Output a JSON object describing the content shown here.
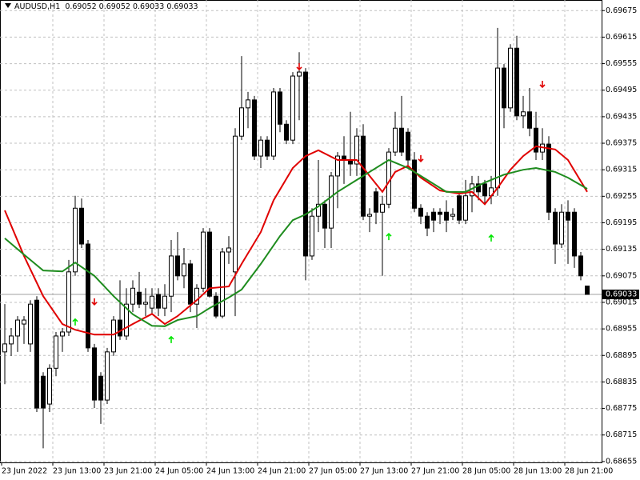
{
  "chart_data": {
    "type": "candlestick",
    "title": "AUDUSD,H1",
    "title_values": [
      0.69052,
      0.69052,
      0.69033,
      0.69033
    ],
    "categories": [
      "23 Jun 2022",
      null,
      null,
      null,
      null,
      null,
      null,
      null,
      "23 Jun 13:00",
      null,
      null,
      null,
      null,
      null,
      null,
      null,
      "23 Jun 21:00",
      null,
      null,
      null,
      null,
      null,
      null,
      null,
      "24 Jun 05:00",
      null,
      null,
      null,
      null,
      null,
      null,
      null,
      "24 Jun 13:00",
      null,
      null,
      null,
      null,
      null,
      null,
      null,
      "24 Jun 21:00",
      null,
      null,
      null,
      null,
      null,
      null,
      null,
      "27 Jun 05:00",
      null,
      null,
      null,
      null,
      null,
      null,
      null,
      "27 Jun 13:00",
      null,
      null,
      null,
      null,
      null,
      null,
      null,
      "27 Jun 21:00",
      null,
      null,
      null,
      null,
      null,
      null,
      null,
      "28 Jun 05:00",
      null,
      null,
      null,
      null,
      null,
      null,
      null,
      "28 Jun 13:00",
      null,
      null,
      null,
      null,
      null,
      null,
      null,
      "28 Jun 21:00",
      null,
      null,
      null
    ],
    "open": [
      0.68903,
      0.68921,
      0.68939,
      0.68966,
      0.68921,
      0.6902,
      0.68848,
      0.68785,
      0.68866,
      0.68939,
      0.68948,
      0.69084,
      0.69228,
      0.69147,
      0.68912,
      0.68848,
      0.68794,
      0.68903,
      0.68975,
      0.68939,
      0.69011,
      0.69038,
      0.69011,
      0.69002,
      0.69033,
      0.69002,
      0.69029,
      0.6912,
      0.69075,
      0.69102,
      0.69011,
      0.69047,
      0.69174,
      0.69029,
      0.68984,
      0.69129,
      0.69084,
      0.69391,
      0.69455,
      0.69473,
      0.69346,
      0.69382,
      0.69346,
      0.69491,
      0.69418,
      0.69382,
      0.69527,
      0.69536,
      0.6912,
      0.6921,
      0.69237,
      0.69183,
      0.69301,
      0.69346,
      0.69337,
      0.69328,
      0.69391,
      0.6921,
      0.69265,
      0.69219,
      0.69237,
      0.69355,
      0.69409,
      0.694,
      0.69337,
      0.69228,
      0.6921,
      0.69219,
      0.69219,
      0.69219,
      0.6921,
      0.69256,
      0.69201,
      0.69256,
      0.69283,
      0.69283,
      0.69256,
      0.69274,
      0.69545,
      0.69455,
      0.6959,
      0.69437,
      0.69446,
      0.69409,
      0.69355,
      0.69373,
      0.69219,
      0.69147,
      0.69219,
      0.69219,
      0.6912,
      0.69052
    ],
    "high": [
      0.69011,
      0.68957,
      0.68984,
      0.68984,
      0.6902,
      0.69029,
      0.68857,
      0.68875,
      0.68948,
      0.68957,
      0.69111,
      0.69256,
      0.6925,
      0.69156,
      0.68921,
      0.68857,
      0.68912,
      0.68984,
      0.69065,
      0.69047,
      0.69065,
      0.69084,
      0.69047,
      0.69047,
      0.69047,
      0.69056,
      0.69156,
      0.69174,
      0.69138,
      0.69111,
      0.69056,
      0.69183,
      0.69183,
      0.69038,
      0.69138,
      0.69165,
      0.69409,
      0.69572,
      0.69491,
      0.69482,
      0.69391,
      0.69391,
      0.695,
      0.695,
      0.69427,
      0.69536,
      0.69581,
      0.69545,
      0.69228,
      0.69337,
      0.69246,
      0.6931,
      0.69355,
      0.69391,
      0.69446,
      0.69409,
      0.69418,
      0.69228,
      0.69274,
      0.69256,
      0.69364,
      0.69446,
      0.69482,
      0.69409,
      0.69355,
      0.69237,
      0.69219,
      0.69228,
      0.69228,
      0.69246,
      0.69228,
      0.69265,
      0.69292,
      0.69301,
      0.69301,
      0.69292,
      0.69301,
      0.69636,
      0.69554,
      0.69599,
      0.69618,
      0.69482,
      0.695,
      0.69446,
      0.69409,
      0.69391,
      0.69228,
      0.69237,
      0.69246,
      0.69228,
      0.69129,
      0.69052
    ],
    "low": [
      0.6883,
      0.68894,
      0.68903,
      0.68921,
      0.68903,
      0.68767,
      0.68685,
      0.68767,
      0.68848,
      0.68903,
      0.68939,
      0.69075,
      0.69138,
      0.68903,
      0.68776,
      0.6874,
      0.68785,
      0.68894,
      0.6893,
      0.6893,
      0.68993,
      0.69002,
      0.68984,
      0.68989,
      0.68984,
      0.68984,
      0.68993,
      0.69065,
      0.69047,
      0.68993,
      0.68957,
      0.69038,
      0.69026,
      0.68979,
      0.68979,
      0.69102,
      0.68984,
      0.69382,
      0.69409,
      0.69337,
      0.69319,
      0.69337,
      0.69337,
      0.694,
      0.69373,
      0.69373,
      0.69427,
      0.69065,
      0.69111,
      0.69174,
      0.69138,
      0.69138,
      0.69228,
      0.69283,
      0.69301,
      0.69301,
      0.69201,
      0.69174,
      0.69192,
      0.69075,
      0.69228,
      0.69346,
      0.69346,
      0.69319,
      0.69219,
      0.69192,
      0.69165,
      0.69174,
      0.69192,
      0.69174,
      0.69201,
      0.69192,
      0.69192,
      0.69219,
      0.69246,
      0.69237,
      0.69237,
      0.69256,
      0.69409,
      0.69446,
      0.69427,
      0.69409,
      0.69391,
      0.69337,
      0.69337,
      0.69201,
      0.69102,
      0.69138,
      0.69102,
      0.69093,
      0.69065,
      0.69033
    ],
    "close": [
      0.68921,
      0.68939,
      0.68975,
      0.68975,
      0.69011,
      0.68776,
      0.68776,
      0.68866,
      0.68939,
      0.68948,
      0.69084,
      0.69228,
      0.69147,
      0.68912,
      0.68794,
      0.68794,
      0.68903,
      0.68975,
      0.68939,
      0.69011,
      0.69047,
      0.69011,
      0.69015,
      0.69029,
      0.69002,
      0.69029,
      0.6912,
      0.69075,
      0.69102,
      0.69011,
      0.69047,
      0.69174,
      0.69029,
      0.68984,
      0.69129,
      0.69138,
      0.69391,
      0.69455,
      0.69473,
      0.69346,
      0.69382,
      0.69346,
      0.69491,
      0.69418,
      0.69382,
      0.69527,
      0.69536,
      0.6912,
      0.6921,
      0.69237,
      0.69183,
      0.69301,
      0.69346,
      0.69337,
      0.69328,
      0.69391,
      0.6921,
      0.69214,
      0.69219,
      0.69237,
      0.69355,
      0.69409,
      0.69355,
      0.69337,
      0.69228,
      0.6921,
      0.69183,
      0.69201,
      0.69214,
      0.69201,
      0.69214,
      0.69201,
      0.69256,
      0.69283,
      0.69265,
      0.69256,
      0.69274,
      0.69545,
      0.69455,
      0.6959,
      0.69437,
      0.69446,
      0.69409,
      0.69355,
      0.69373,
      0.69219,
      0.69147,
      0.69219,
      0.69201,
      0.6912,
      0.69075,
      0.69033
    ],
    "up_color": "#ffffff",
    "down_color": "#000000",
    "lines": [
      {
        "color": "#e00000",
        "x": [
          0,
          3,
          6,
          9,
          11,
          14,
          17,
          20,
          23,
          25,
          27,
          30,
          32,
          35,
          37,
          40,
          42,
          45,
          47,
          49,
          52,
          55,
          57,
          59,
          61,
          63,
          65,
          68,
          71,
          73,
          75,
          77,
          79,
          81,
          83,
          86,
          88,
          91
        ],
        "values": [
          0.69223,
          0.6912,
          0.69029,
          0.68966,
          0.68953,
          0.68942,
          0.68942,
          0.68966,
          0.68989,
          0.68966,
          0.68984,
          0.6902,
          0.69047,
          0.69051,
          0.69102,
          0.69174,
          0.69246,
          0.69319,
          0.69346,
          0.69359,
          0.69337,
          0.69337,
          0.69301,
          0.69265,
          0.6931,
          0.69324,
          0.69297,
          0.69268,
          0.69261,
          0.69265,
          0.69237,
          0.69274,
          0.69315,
          0.69346,
          0.69368,
          0.69361,
          0.69337,
          0.69265
        ]
      },
      {
        "color": "#1e8c1e",
        "x": [
          0,
          3,
          6,
          9,
          11,
          14,
          17,
          20,
          23,
          25,
          27,
          30,
          32,
          35,
          37,
          40,
          43,
          45,
          47,
          49,
          52,
          55,
          57,
          60,
          63,
          66,
          69,
          72,
          75,
          78,
          81,
          83,
          86,
          88,
          91
        ],
        "values": [
          0.6916,
          0.69123,
          0.69087,
          0.69085,
          0.69105,
          0.69075,
          0.69029,
          0.68988,
          0.68962,
          0.68961,
          0.68975,
          0.68984,
          0.69002,
          0.69026,
          0.69044,
          0.69102,
          0.69165,
          0.69201,
          0.69214,
          0.69232,
          0.69265,
          0.69292,
          0.6931,
          0.69337,
          0.69319,
          0.69292,
          0.69265,
          0.69265,
          0.69286,
          0.69304,
          0.69315,
          0.69319,
          0.6931,
          0.69297,
          0.69272
        ]
      }
    ],
    "signals": [
      {
        "direction": "up",
        "color": "#00e600",
        "x": [
          11,
          26,
          60,
          76
        ],
        "values": [
          0.6897,
          0.6893,
          0.69163,
          0.6916
        ]
      },
      {
        "direction": "down",
        "color": "#e00000",
        "x": [
          14,
          46,
          65,
          84
        ],
        "values": [
          0.69017,
          0.69549,
          0.69341,
          0.69509
        ]
      }
    ],
    "last_price": 0.69033,
    "ylim": [
      0.68653,
      0.69699
    ],
    "yticks": [
      0.69675,
      0.69615,
      0.69555,
      0.69495,
      0.69435,
      0.69375,
      0.69315,
      0.69255,
      0.69195,
      0.69135,
      0.69075,
      0.69015,
      0.68955,
      0.68895,
      0.68835,
      0.68775,
      0.68715,
      0.68655
    ],
    "grid": true
  }
}
